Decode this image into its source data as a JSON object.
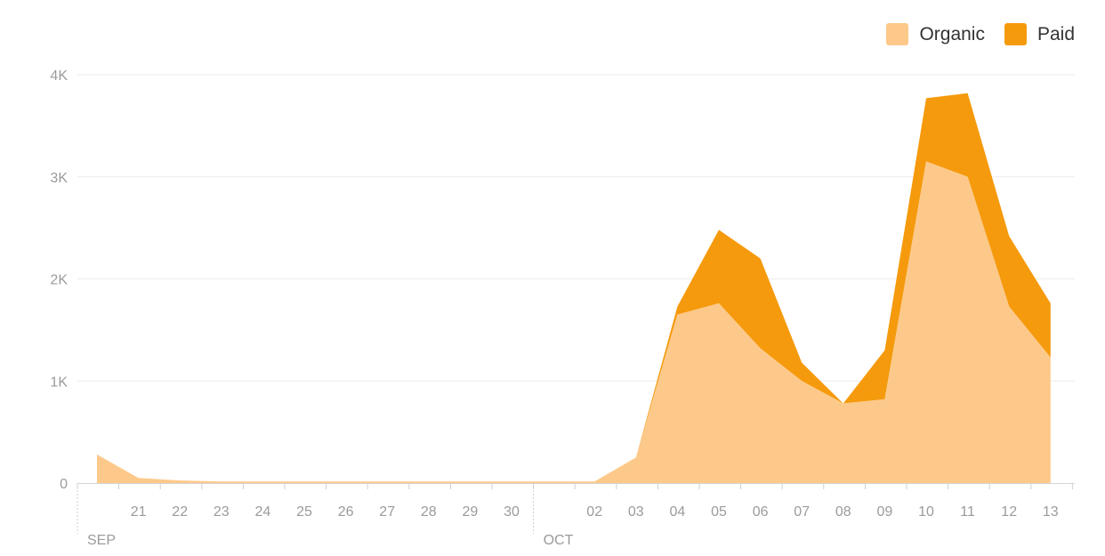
{
  "chart_data": {
    "type": "area",
    "stacked": true,
    "x": [
      "09-20",
      "09-21",
      "09-22",
      "09-23",
      "09-24",
      "09-25",
      "09-26",
      "09-27",
      "09-28",
      "09-29",
      "09-30",
      "10-01",
      "10-02",
      "10-03",
      "10-04",
      "10-05",
      "10-06",
      "10-07",
      "10-08",
      "10-09",
      "10-10",
      "10-11",
      "10-12",
      "10-13"
    ],
    "tick_labels": [
      "",
      "21",
      "22",
      "23",
      "24",
      "25",
      "26",
      "27",
      "28",
      "29",
      "30",
      "",
      "02",
      "03",
      "04",
      "05",
      "06",
      "07",
      "08",
      "09",
      "10",
      "11",
      "12",
      "13"
    ],
    "month_labels": [
      {
        "label": "SEP",
        "index": 0
      },
      {
        "label": "OCT",
        "index": 11
      }
    ],
    "series": [
      {
        "name": "Organic",
        "color": "#fdc98a",
        "values": [
          280,
          50,
          25,
          15,
          15,
          15,
          15,
          15,
          15,
          15,
          15,
          15,
          15,
          250,
          1650,
          1760,
          1320,
          1000,
          780,
          820,
          3150,
          3000,
          1730,
          1230
        ]
      },
      {
        "name": "Paid",
        "color": "#f59a0d",
        "values": [
          0,
          0,
          0,
          0,
          0,
          0,
          0,
          0,
          0,
          0,
          0,
          0,
          0,
          0,
          80,
          720,
          880,
          180,
          0,
          480,
          620,
          820,
          690,
          530
        ]
      }
    ],
    "y_ticks": [
      {
        "value": 0,
        "label": "0"
      },
      {
        "value": 1000,
        "label": "1K"
      },
      {
        "value": 2000,
        "label": "2K"
      },
      {
        "value": 3000,
        "label": "3K"
      },
      {
        "value": 4000,
        "label": "4K"
      }
    ],
    "ylim": [
      0,
      4000
    ],
    "grid": true,
    "legend": "top-right",
    "title": "",
    "xlabel": "",
    "ylabel": ""
  }
}
